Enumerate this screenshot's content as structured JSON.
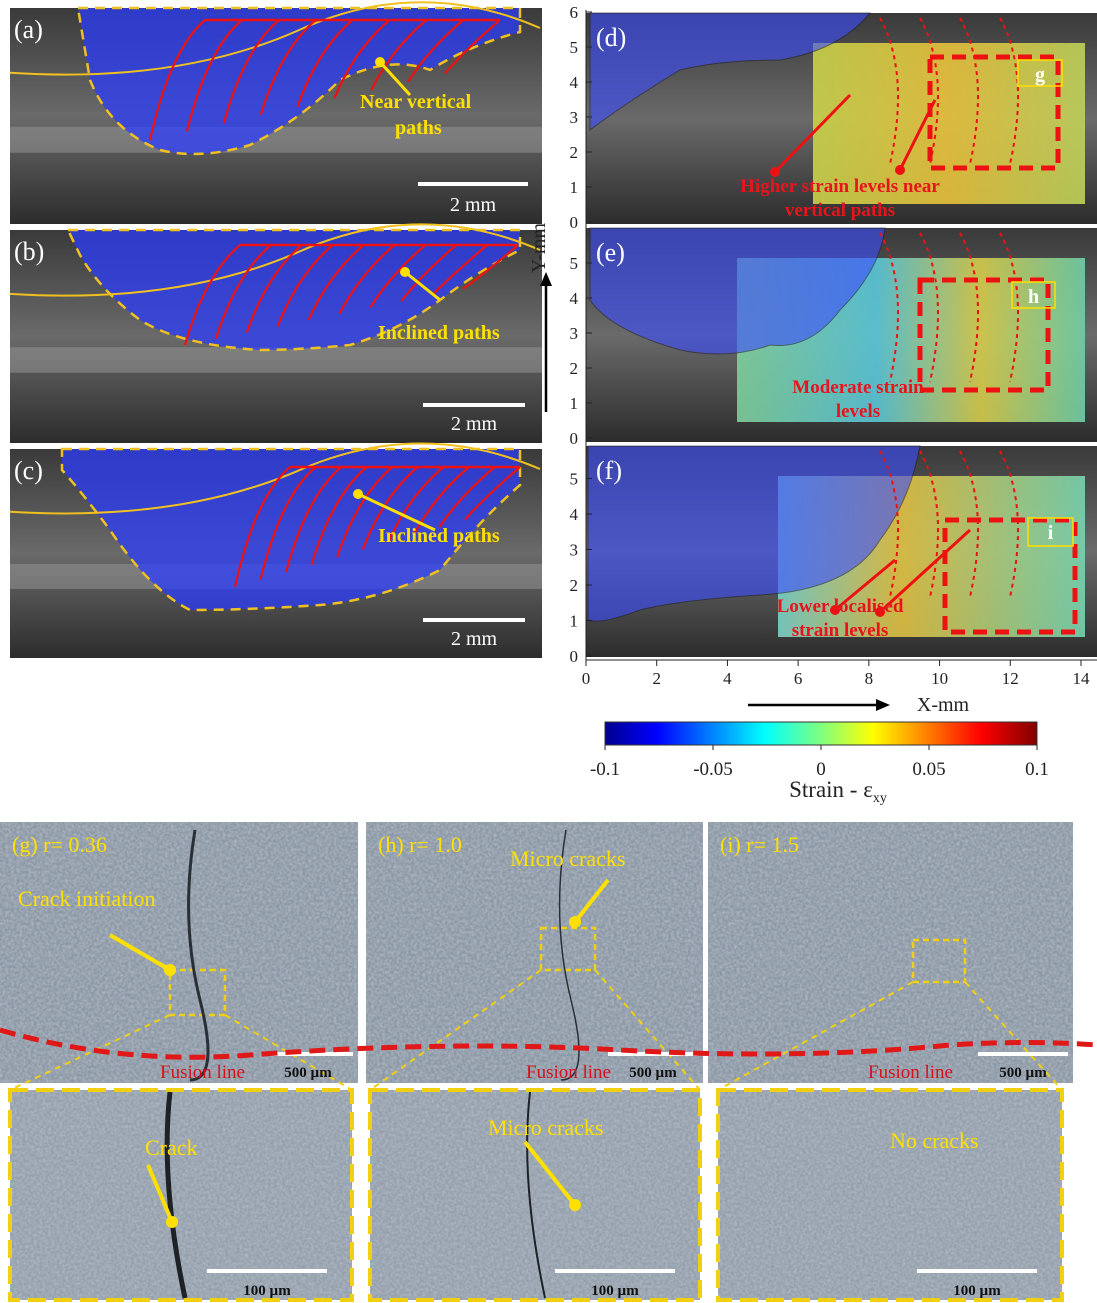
{
  "panels": {
    "a": {
      "label": "(a)",
      "annotation": [
        "Near vertical",
        "paths"
      ],
      "scale_bar": "2 mm"
    },
    "b": {
      "label": "(b)",
      "annotation": [
        "Inclined paths"
      ],
      "scale_bar": "2 mm"
    },
    "c": {
      "label": "(c)",
      "annotation": [
        "Inclined paths"
      ],
      "scale_bar": "2 mm"
    },
    "d": {
      "label": "(d)",
      "region": "g",
      "annotation": [
        "Higher strain levels near",
        "vertical paths"
      ],
      "yticks": [
        0,
        1,
        2,
        3,
        4,
        5,
        6
      ]
    },
    "e": {
      "label": "(e)",
      "region": "h",
      "annotation": [
        "Moderate strain",
        "levels"
      ],
      "yticks": [
        0,
        1,
        2,
        3,
        4,
        5
      ]
    },
    "f": {
      "label": "(f)",
      "region": "i",
      "annotation": [
        "Lower localised",
        "strain levels"
      ],
      "yticks": [
        0,
        1,
        2,
        3,
        4,
        5
      ]
    }
  },
  "x_axis": {
    "label": "X-mm",
    "ticks": [
      0,
      2,
      4,
      6,
      8,
      10,
      12,
      14
    ]
  },
  "y_axis": {
    "label": "Y-mm"
  },
  "colorbar": {
    "ticks": [
      -0.1,
      -0.05,
      0,
      0.05,
      0.1
    ],
    "label": "Strain - ε",
    "label_subscript": "xy"
  },
  "micrographs": [
    {
      "label": "(g) r= 0.36",
      "annotation": "Crack initiation",
      "fusion_line": "Fusion line",
      "scale_bar": "500 µm",
      "zoom_annotation": "Crack",
      "zoom_scale_bar": "100 µm"
    },
    {
      "label": "(h) r= 1.0",
      "annotation": "Micro cracks",
      "fusion_line": "Fusion line",
      "scale_bar": "500 µm",
      "zoom_annotation": "Micro cracks",
      "zoom_scale_bar": "100 µm"
    },
    {
      "label": "(i) r= 1.5",
      "fusion_line": "Fusion line",
      "scale_bar": "500 µm",
      "zoom_annotation": "No cracks",
      "zoom_scale_bar": "100 µm"
    }
  ]
}
